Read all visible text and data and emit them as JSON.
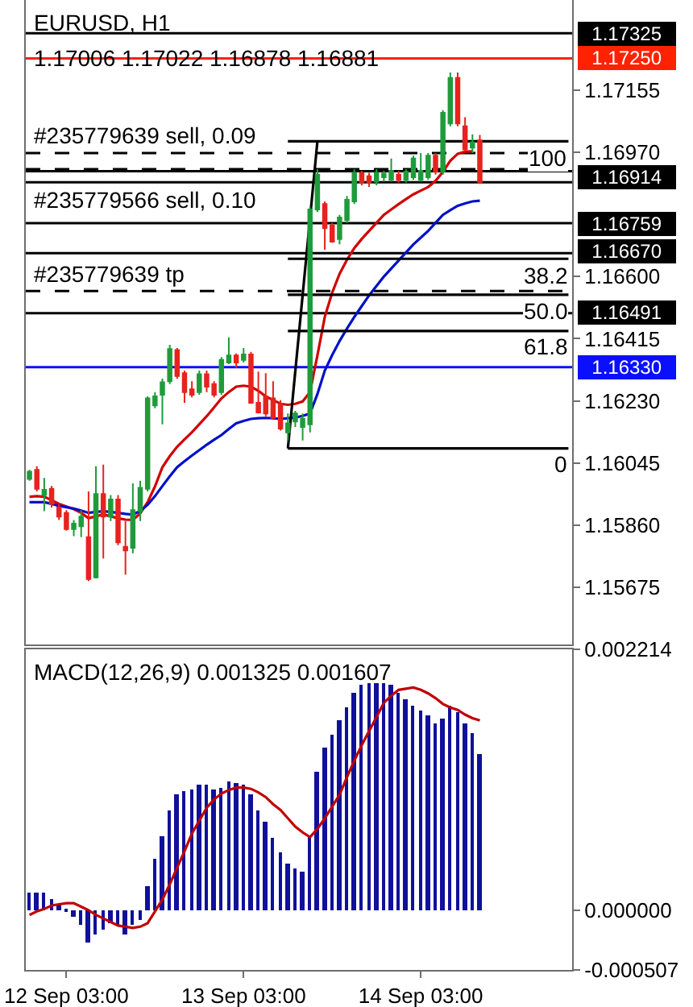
{
  "chart_data": [
    {
      "type": "candlestick",
      "title": "EURUSD, H1",
      "subtitle": "1.17006 1.17022 1.16878 1.16881",
      "categories": [
        null,
        null,
        null,
        null,
        null,
        null,
        null,
        null,
        null,
        null,
        null,
        null,
        null,
        null,
        null,
        null,
        null,
        null,
        null,
        null,
        null,
        null,
        null,
        null,
        null,
        null,
        null,
        null,
        null,
        null,
        null,
        null,
        null,
        null,
        null,
        null,
        null,
        null,
        null,
        null,
        null,
        null,
        null,
        null,
        null,
        null,
        null,
        null,
        null,
        null,
        null,
        null,
        null,
        null,
        null,
        null,
        null,
        null,
        null,
        null,
        null,
        null,
        null,
        null,
        null,
        null,
        null,
        null,
        null,
        null,
        null,
        null,
        null,
        null
      ],
      "ohlc": [
        [
          1.15997,
          1.16024,
          1.15992,
          1.16019
        ],
        [
          1.16024,
          1.16035,
          1.1596,
          1.15968
        ],
        [
          1.15949,
          1.16,
          1.15901,
          1.15965
        ],
        [
          1.15968,
          1.15976,
          1.15912,
          1.15923
        ],
        [
          1.15912,
          1.15923,
          1.15875,
          1.15885
        ],
        [
          1.15896,
          1.15904,
          1.15843,
          1.15848
        ],
        [
          1.15848,
          1.15875,
          1.15827,
          1.15864
        ],
        [
          1.15856,
          1.15904,
          1.15824,
          1.15885
        ],
        [
          1.15824,
          1.1596,
          1.15693,
          1.15699
        ],
        [
          1.15704,
          1.16035,
          1.15701,
          1.15952
        ],
        [
          1.15952,
          1.1604,
          1.1576,
          1.15885
        ],
        [
          1.15885,
          1.15949,
          1.15872,
          1.15936
        ],
        [
          1.15936,
          1.15949,
          1.158,
          1.15808
        ],
        [
          1.15795,
          1.15872,
          1.15712,
          1.15784
        ],
        [
          1.15792,
          1.15984,
          1.15776,
          1.15904
        ],
        [
          1.15901,
          1.15992,
          1.15872,
          1.15971
        ],
        [
          1.15968,
          1.16243,
          1.1596,
          1.16237
        ],
        [
          1.16216,
          1.16256,
          1.16208,
          1.16243
        ],
        [
          1.16248,
          1.16296,
          1.1616,
          1.16285
        ],
        [
          1.16288,
          1.16397,
          1.1628,
          1.16384
        ],
        [
          1.16381,
          1.16387,
          1.16296,
          1.16304
        ],
        [
          1.16312,
          1.1632,
          1.16224,
          1.16256
        ],
        [
          1.16264,
          1.16288,
          1.1624,
          1.16248
        ],
        [
          1.16256,
          1.1632,
          1.16248,
          1.16309
        ],
        [
          1.16309,
          1.1632,
          1.16256,
          1.16272
        ],
        [
          1.1628,
          1.16288,
          1.1624,
          1.16248
        ],
        [
          1.16256,
          1.1636,
          1.16248,
          1.16352
        ],
        [
          1.16344,
          1.16419,
          1.16339,
          1.16365
        ],
        [
          1.16365,
          1.16371,
          1.16328,
          1.16344
        ],
        [
          1.16352,
          1.16387,
          1.16344,
          1.16368
        ],
        [
          1.16368,
          1.16376,
          1.16221,
          1.16224
        ],
        [
          1.16224,
          1.16317,
          1.16192,
          1.16195
        ],
        [
          1.16243,
          1.16312,
          1.16184,
          1.16192
        ],
        [
          1.16237,
          1.16288,
          1.16173,
          1.16179
        ],
        [
          1.16221,
          1.16232,
          1.16141,
          1.16147
        ],
        [
          1.16136,
          1.16192,
          1.16112,
          1.16163
        ],
        [
          1.16168,
          1.162,
          1.16152,
          1.16192
        ],
        [
          1.16152,
          1.16192,
          1.16112,
          1.16176
        ],
        [
          1.1616,
          1.16808,
          1.16136,
          1.168
        ],
        [
          1.168,
          1.1692,
          1.16792,
          1.16904
        ],
        [
          1.16816,
          1.16824,
          1.1668,
          1.16744
        ],
        [
          1.16752,
          1.1676,
          1.16701,
          1.16704
        ],
        [
          1.16712,
          1.16784,
          1.16696,
          1.16776
        ],
        [
          1.16768,
          1.1684,
          1.1676,
          1.16829
        ],
        [
          1.16824,
          1.1692,
          1.16816,
          1.16909
        ],
        [
          1.16909,
          1.16915,
          1.16872,
          1.1688
        ],
        [
          1.16899,
          1.16909,
          1.16867,
          1.1688
        ],
        [
          1.16883,
          1.1692,
          1.16872,
          1.16909
        ],
        [
          1.16896,
          1.16915,
          1.16883,
          1.16907
        ],
        [
          1.16888,
          1.16952,
          1.16883,
          1.16915
        ],
        [
          1.16904,
          1.16915,
          1.1688,
          1.16888
        ],
        [
          1.16888,
          1.1692,
          1.1688,
          1.16912
        ],
        [
          1.16896,
          1.1696,
          1.16888,
          1.16952
        ],
        [
          1.16888,
          1.16968,
          1.16883,
          1.16915
        ],
        [
          1.16896,
          1.16968,
          1.16888,
          1.1696
        ],
        [
          1.1696,
          1.16968,
          1.16904,
          1.16912
        ],
        [
          1.16912,
          1.17096,
          1.16904,
          1.17088
        ],
        [
          1.17056,
          1.17208,
          1.17048,
          1.17192
        ],
        [
          1.17192,
          1.17208,
          1.17048,
          1.17056
        ],
        [
          1.17048,
          1.17075,
          1.16973,
          1.16979
        ],
        [
          1.16984,
          1.17024,
          1.16968,
          1.17
        ],
        [
          1.17006,
          1.17022,
          1.16878,
          1.16881
        ],
        null,
        null,
        null,
        null,
        null,
        null,
        null,
        null,
        null,
        null,
        null,
        null
      ],
      "series": [
        {
          "type": "line",
          "color": "#d00000",
          "values": [
            1.15944,
            1.15946,
            1.15944,
            1.15934,
            1.15923,
            1.15915,
            1.15907,
            1.15896,
            1.1588,
            1.15886,
            1.15891,
            1.15886,
            1.1588,
            1.15876,
            1.15875,
            1.15895,
            1.15928,
            1.15975,
            1.16032,
            1.16065,
            1.16093,
            1.16115,
            1.16136,
            1.1616,
            1.16184,
            1.1621,
            1.16237,
            1.16256,
            1.16272,
            1.16275,
            1.16272,
            1.1626,
            1.16243,
            1.16232,
            1.16221,
            1.16218,
            1.16221,
            1.16228,
            1.16256,
            1.16365,
            1.1648,
            1.16552,
            1.16608,
            1.1665,
            1.16685,
            1.16712,
            1.16736,
            1.1676,
            1.16784,
            1.168,
            1.16816,
            1.16831,
            1.16845,
            1.16856,
            1.16867,
            1.16885,
            1.16912,
            1.16945,
            1.16966,
            1.16972,
            1.16973,
            null,
            null,
            null,
            null,
            null,
            null,
            null,
            null,
            null,
            null,
            null,
            null,
            null
          ]
        },
        {
          "type": "line",
          "color": "#0010c8",
          "values": [
            1.15928,
            1.15928,
            1.15928,
            1.15923,
            1.15917,
            1.15913,
            1.15909,
            1.15903,
            1.15896,
            1.15899,
            1.15901,
            1.15899,
            1.15896,
            1.15893,
            1.15891,
            1.15902,
            1.1592,
            1.15946,
            1.15976,
            1.16005,
            1.16032,
            1.1605,
            1.16067,
            1.16083,
            1.16099,
            1.16114,
            1.16128,
            1.16146,
            1.16163,
            1.1617,
            1.16176,
            1.16178,
            1.16179,
            1.16178,
            1.16176,
            1.16178,
            1.1618,
            1.16185,
            1.16192,
            1.1625,
            1.1632,
            1.16366,
            1.16408,
            1.16445,
            1.1648,
            1.16512,
            1.16544,
            1.16572,
            1.166,
            1.16624,
            1.16648,
            1.16672,
            1.16696,
            1.16716,
            1.16736,
            1.1676,
            1.16784,
            1.16798,
            1.16811,
            1.16818,
            1.16824,
            1.16826,
            null,
            null,
            null,
            null,
            null,
            null,
            null,
            null,
            null,
            null,
            null,
            null
          ]
        },
        {
          "type": "line",
          "color": "#000000",
          "values": [
            null,
            null,
            null,
            null,
            null,
            null,
            null,
            null,
            null,
            null,
            null,
            null,
            null,
            null,
            null,
            null,
            null,
            null,
            null,
            null,
            null,
            null,
            null,
            null,
            null,
            null,
            null,
            null,
            null,
            null,
            null,
            null,
            null,
            null,
            null,
            1.16088,
            1.16317,
            1.16545,
            1.16774,
            1.17003,
            null,
            null,
            null,
            null,
            null,
            null,
            null,
            null,
            null,
            null,
            null,
            null,
            null,
            null,
            null,
            null,
            null,
            null,
            null,
            null,
            null,
            null,
            null,
            null,
            null,
            null,
            null,
            null,
            null,
            null,
            null,
            null,
            null,
            null
          ]
        },
        {
          "type": "line",
          "color": "#000000",
          "values": [
            null,
            null,
            null,
            null,
            null,
            null,
            null,
            null,
            null,
            null,
            null,
            null,
            null,
            null,
            null,
            null,
            null,
            null,
            null,
            null,
            null,
            null,
            null,
            null,
            null,
            null,
            null,
            null,
            null,
            null,
            null,
            null,
            null,
            null,
            null,
            1.17003,
            1.17003,
            1.17003,
            1.17003,
            1.17003,
            1.17003,
            1.17003,
            1.17003,
            1.17003,
            1.17003,
            1.17003,
            1.17003,
            1.17003,
            1.17003,
            1.17003,
            1.17003,
            1.17003,
            1.17003,
            1.17003,
            1.17003,
            1.17003,
            1.17003,
            1.17003,
            1.17003,
            1.17003,
            1.17003,
            1.17003,
            1.17003,
            1.17003,
            1.17003,
            1.17003,
            1.17003,
            1.17003,
            1.17003,
            1.17003,
            1.17003,
            1.17003,
            1.17003,
            1.17003
          ]
        },
        {
          "type": "line",
          "color": "#000000",
          "values": [
            null,
            null,
            null,
            null,
            null,
            null,
            null,
            null,
            null,
            null,
            null,
            null,
            null,
            null,
            null,
            null,
            null,
            null,
            null,
            null,
            null,
            null,
            null,
            null,
            null,
            null,
            null,
            null,
            null,
            null,
            null,
            null,
            null,
            null,
            null,
            1.16653,
            1.16653,
            1.16653,
            1.16653,
            1.16653,
            1.16653,
            1.16653,
            1.16653,
            1.16653,
            1.16653,
            1.16653,
            1.16653,
            1.16653,
            1.16653,
            1.16653,
            1.16653,
            1.16653,
            1.16653,
            1.16653,
            1.16653,
            1.16653,
            1.16653,
            1.16653,
            1.16653,
            1.16653,
            1.16653,
            1.16653,
            1.16653,
            1.16653,
            1.16653,
            1.16653,
            1.16653,
            1.16653,
            1.16653,
            1.16653,
            1.16653,
            1.16653,
            1.16653,
            1.16653
          ]
        },
        {
          "type": "line",
          "color": "#000000",
          "values": [
            null,
            null,
            null,
            null,
            null,
            null,
            null,
            null,
            null,
            null,
            null,
            null,
            null,
            null,
            null,
            null,
            null,
            null,
            null,
            null,
            null,
            null,
            null,
            null,
            null,
            null,
            null,
            null,
            null,
            null,
            null,
            null,
            null,
            null,
            null,
            1.16546,
            1.16546,
            1.16546,
            1.16546,
            1.16546,
            1.16546,
            1.16546,
            1.16546,
            1.16546,
            1.16546,
            1.16546,
            1.16546,
            1.16546,
            1.16546,
            1.16546,
            1.16546,
            1.16546,
            1.16546,
            1.16546,
            1.16546,
            1.16546,
            1.16546,
            1.16546,
            1.16546,
            1.16546,
            1.16546,
            1.16546,
            1.16546,
            1.16546,
            1.16546,
            1.16546,
            1.16546,
            1.16546,
            1.16546,
            1.16546,
            1.16546,
            1.16546,
            1.16546,
            1.16546
          ]
        },
        {
          "type": "line",
          "color": "#000000",
          "values": [
            null,
            null,
            null,
            null,
            null,
            null,
            null,
            null,
            null,
            null,
            null,
            null,
            null,
            null,
            null,
            null,
            null,
            null,
            null,
            null,
            null,
            null,
            null,
            null,
            null,
            null,
            null,
            null,
            null,
            null,
            null,
            null,
            null,
            null,
            null,
            1.16438,
            1.16438,
            1.16438,
            1.16438,
            1.16438,
            1.16438,
            1.16438,
            1.16438,
            1.16438,
            1.16438,
            1.16438,
            1.16438,
            1.16438,
            1.16438,
            1.16438,
            1.16438,
            1.16438,
            1.16438,
            1.16438,
            1.16438,
            1.16438,
            1.16438,
            1.16438,
            1.16438,
            1.16438,
            1.16438,
            1.16438,
            1.16438,
            1.16438,
            1.16438,
            1.16438,
            1.16438,
            1.16438,
            1.16438,
            1.16438,
            1.16438,
            1.16438,
            1.16438,
            1.16438
          ]
        },
        {
          "type": "line",
          "color": "#000000",
          "values": [
            null,
            null,
            null,
            null,
            null,
            null,
            null,
            null,
            null,
            null,
            null,
            null,
            null,
            null,
            null,
            null,
            null,
            null,
            null,
            null,
            null,
            null,
            null,
            null,
            null,
            null,
            null,
            null,
            null,
            null,
            null,
            null,
            null,
            null,
            null,
            1.16088,
            1.16088,
            1.16088,
            1.16088,
            1.16088,
            1.16088,
            1.16088,
            1.16088,
            1.16088,
            1.16088,
            1.16088,
            1.16088,
            1.16088,
            1.16088,
            1.16088,
            1.16088,
            1.16088,
            1.16088,
            1.16088,
            1.16088,
            1.16088,
            1.16088,
            1.16088,
            1.16088,
            1.16088,
            1.16088,
            1.16088,
            1.16088,
            1.16088,
            1.16088,
            1.16088,
            1.16088,
            1.16088,
            1.16088,
            1.16088,
            1.16088,
            1.16088,
            1.16088,
            1.16088
          ]
        }
      ],
      "ref_lines": [
        {
          "axis": "y",
          "value": 1.17325,
          "label": "1.17325",
          "color": "#000000"
        },
        {
          "axis": "y",
          "value": 1.1725,
          "label": "1.17250",
          "color": "#ff2200"
        },
        {
          "axis": "y",
          "value": 1.16968,
          "label": null,
          "color": "#000000",
          "line_style": "dashed"
        },
        {
          "axis": "y",
          "value": 1.1692,
          "label": null,
          "color": "#000000",
          "line_style": "dashed"
        },
        {
          "axis": "y",
          "value": 1.16914,
          "label": "1.16914",
          "color": "#000000"
        },
        {
          "axis": "y",
          "value": 1.16881,
          "label": null,
          "color": "#000000"
        },
        {
          "axis": "y",
          "value": 1.16759,
          "label": "1.16759",
          "color": "#000000"
        },
        {
          "axis": "y",
          "value": 1.1667,
          "label": "1.16670",
          "color": "#000000"
        },
        {
          "axis": "y",
          "value": 1.16557,
          "label": null,
          "color": "#000000",
          "line_style": "dashed"
        },
        {
          "axis": "y",
          "value": 1.16491,
          "label": "1.16491",
          "color": "#000000"
        },
        {
          "axis": "y",
          "value": 1.1633,
          "label": "1.16330",
          "color": "#0a10ff"
        }
      ],
      "annotations": [
        {
          "text": "#235779639 sell, 0.09",
          "y": 1.16968
        },
        {
          "text": "#235779566 sell, 0.10",
          "y": 1.1692
        },
        {
          "text": "#235779639 tp",
          "y": 1.16557
        },
        {
          "text": "100",
          "y": 1.17003
        },
        {
          "text": "38.2",
          "y": 1.16653
        },
        {
          "text": "50.0",
          "y": 1.16546
        },
        {
          "text": "61.8",
          "y": 1.16438
        },
        {
          "text": "0",
          "y": 1.16088
        }
      ],
      "ylim": [
        1.15504,
        1.17424
      ],
      "yticks": [
        1.17155,
        {
          "value": 1.1697,
          "label": "1.16970"
        },
        {
          "value": 1.166,
          "label": "1.16600"
        },
        1.16415,
        {
          "value": 1.1623,
          "label": "1.16230"
        },
        1.16045,
        {
          "value": 1.1586,
          "label": "1.15860"
        },
        1.15675
      ],
      "tick_labels": "y"
    },
    {
      "type": "bar",
      "title": "MACD(12,26,9) 0.001325 0.001607",
      "categories": [
        null,
        null,
        null,
        null,
        null,
        "12 Sep 03:00",
        null,
        null,
        null,
        null,
        null,
        null,
        null,
        null,
        null,
        null,
        null,
        null,
        null,
        null,
        null,
        null,
        null,
        null,
        null,
        null,
        null,
        null,
        null,
        "13 Sep 03:00",
        null,
        null,
        null,
        null,
        null,
        null,
        null,
        null,
        null,
        null,
        null,
        null,
        null,
        null,
        null,
        null,
        null,
        null,
        null,
        null,
        null,
        null,
        null,
        "14 Sep 03:00",
        null,
        null,
        null,
        null,
        null,
        null,
        null,
        null,
        null,
        null,
        null,
        null,
        null,
        null,
        null,
        null,
        null,
        null,
        null,
        null
      ],
      "series": [
        {
          "color": "#10109a",
          "values": [
            0.00015,
            0.00015,
            0.00015,
            0.0001,
            5e-05,
            -2e-05,
            -5e-05,
            -0.00013,
            -0.00027,
            -0.0002,
            -0.00016,
            -0.00011,
            -0.00013,
            -0.00021,
            -0.00013,
            -8e-05,
            0.0002,
            0.00043,
            0.00063,
            0.00085,
            0.00098,
            0.00101,
            0.00102,
            0.00106,
            0.00106,
            0.00102,
            0.00104,
            0.00109,
            0.00108,
            0.00107,
            0.00098,
            0.00084,
            0.00075,
            0.00061,
            0.00049,
            0.0004,
            0.00036,
            0.00033,
            0.00063,
            0.00118,
            0.00138,
            0.00149,
            0.00161,
            0.00172,
            0.00185,
            0.00192,
            0.00193,
            0.00193,
            0.00193,
            0.00191,
            0.00185,
            0.00179,
            0.00174,
            0.00169,
            0.00166,
            0.00158,
            0.00162,
            0.00173,
            0.00168,
            0.00158,
            0.0015,
            0.00133,
            null,
            null,
            null,
            null,
            null,
            null,
            null,
            null,
            null,
            null,
            null,
            null
          ]
        },
        {
          "type": "line",
          "color": "#c00000",
          "values": [
            -4e-05,
            -1e-05,
            1e-05,
            4e-05,
            5e-05,
            6e-05,
            6e-05,
            3e-05,
            0.0,
            -4e-05,
            -7e-05,
            -0.0001,
            -0.00013,
            -0.00014,
            -0.00015,
            -0.00014,
            -0.00011,
            -1e-05,
            9e-05,
            0.00022,
            0.00036,
            0.0005,
            0.00065,
            0.00076,
            0.00087,
            0.00094,
            0.00099,
            0.00102,
            0.00104,
            0.00104,
            0.00103,
            0.001,
            0.00096,
            0.0009,
            0.00085,
            0.00078,
            0.00071,
            0.00066,
            0.00062,
            0.00069,
            0.00078,
            0.00088,
            0.00098,
            0.00113,
            0.00127,
            0.0014,
            0.00152,
            0.00164,
            0.00176,
            0.00182,
            0.00187,
            0.00188,
            0.00189,
            0.00187,
            0.00184,
            0.0018,
            0.00175,
            0.00172,
            0.0017,
            0.00166,
            0.00163,
            0.00161,
            null,
            null,
            null,
            null,
            null,
            null,
            null,
            null,
            null,
            null,
            null,
            null
          ]
        }
      ],
      "ylim": [
        -0.000507,
        0.002214
      ],
      "yticks": [
        0.002214,
        {
          "value": 0,
          "label": "0.000000"
        },
        -0.000507
      ]
    }
  ]
}
